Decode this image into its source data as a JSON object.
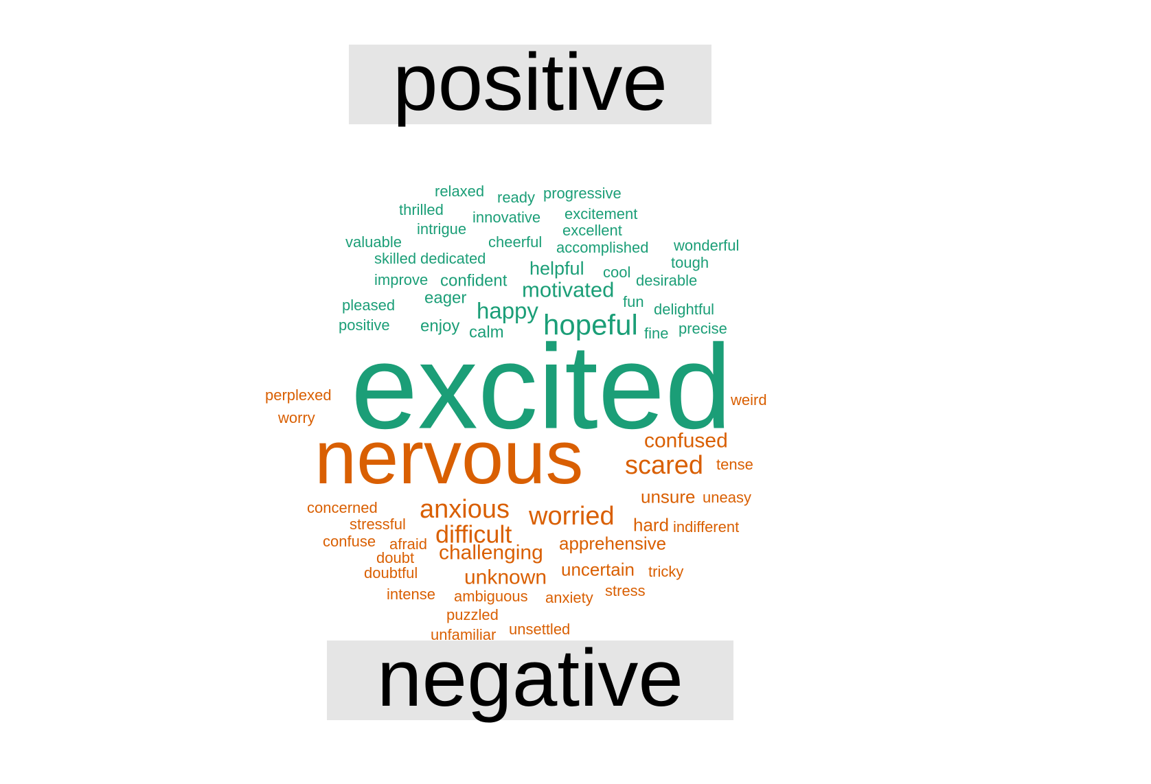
{
  "colors": {
    "positive": "#1b9e77",
    "negative": "#d95f02",
    "label_background": "#e5e5e5"
  },
  "labels": {
    "positive": "positive",
    "negative": "negative"
  },
  "words": [
    {
      "text": "relaxed",
      "group": "positive"
    },
    {
      "text": "ready",
      "group": "positive"
    },
    {
      "text": "progressive",
      "group": "positive"
    },
    {
      "text": "thrilled",
      "group": "positive"
    },
    {
      "text": "innovative",
      "group": "positive"
    },
    {
      "text": "excitement",
      "group": "positive"
    },
    {
      "text": "intrigue",
      "group": "positive"
    },
    {
      "text": "excellent",
      "group": "positive"
    },
    {
      "text": "valuable",
      "group": "positive"
    },
    {
      "text": "cheerful",
      "group": "positive"
    },
    {
      "text": "accomplished",
      "group": "positive"
    },
    {
      "text": "wonderful",
      "group": "positive"
    },
    {
      "text": "skilled",
      "group": "positive"
    },
    {
      "text": "dedicated",
      "group": "positive"
    },
    {
      "text": "tough",
      "group": "positive"
    },
    {
      "text": "helpful",
      "group": "positive"
    },
    {
      "text": "cool",
      "group": "positive"
    },
    {
      "text": "improve",
      "group": "positive"
    },
    {
      "text": "confident",
      "group": "positive"
    },
    {
      "text": "desirable",
      "group": "positive"
    },
    {
      "text": "motivated",
      "group": "positive"
    },
    {
      "text": "eager",
      "group": "positive"
    },
    {
      "text": "pleased",
      "group": "positive"
    },
    {
      "text": "fun",
      "group": "positive"
    },
    {
      "text": "happy",
      "group": "positive"
    },
    {
      "text": "delightful",
      "group": "positive"
    },
    {
      "text": "positive",
      "group": "positive"
    },
    {
      "text": "enjoy",
      "group": "positive"
    },
    {
      "text": "hopeful",
      "group": "positive"
    },
    {
      "text": "calm",
      "group": "positive"
    },
    {
      "text": "fine",
      "group": "positive"
    },
    {
      "text": "precise",
      "group": "positive"
    },
    {
      "text": "excited",
      "group": "positive"
    },
    {
      "text": "perplexed",
      "group": "negative"
    },
    {
      "text": "weird",
      "group": "negative"
    },
    {
      "text": "worry",
      "group": "negative"
    },
    {
      "text": "nervous",
      "group": "negative"
    },
    {
      "text": "confused",
      "group": "negative"
    },
    {
      "text": "scared",
      "group": "negative"
    },
    {
      "text": "tense",
      "group": "negative"
    },
    {
      "text": "unsure",
      "group": "negative"
    },
    {
      "text": "uneasy",
      "group": "negative"
    },
    {
      "text": "concerned",
      "group": "negative"
    },
    {
      "text": "anxious",
      "group": "negative"
    },
    {
      "text": "worried",
      "group": "negative"
    },
    {
      "text": "stressful",
      "group": "negative"
    },
    {
      "text": "hard",
      "group": "negative"
    },
    {
      "text": "indifferent",
      "group": "negative"
    },
    {
      "text": "difficult",
      "group": "negative"
    },
    {
      "text": "confuse",
      "group": "negative"
    },
    {
      "text": "afraid",
      "group": "negative"
    },
    {
      "text": "apprehensive",
      "group": "negative"
    },
    {
      "text": "doubt",
      "group": "negative"
    },
    {
      "text": "challenging",
      "group": "negative"
    },
    {
      "text": "doubtful",
      "group": "negative"
    },
    {
      "text": "uncertain",
      "group": "negative"
    },
    {
      "text": "tricky",
      "group": "negative"
    },
    {
      "text": "unknown",
      "group": "negative"
    },
    {
      "text": "intense",
      "group": "negative"
    },
    {
      "text": "ambiguous",
      "group": "negative"
    },
    {
      "text": "anxiety",
      "group": "negative"
    },
    {
      "text": "stress",
      "group": "negative"
    },
    {
      "text": "puzzled",
      "group": "negative"
    },
    {
      "text": "unfamiliar",
      "group": "negative"
    },
    {
      "text": "unsettled",
      "group": "negative"
    }
  ]
}
